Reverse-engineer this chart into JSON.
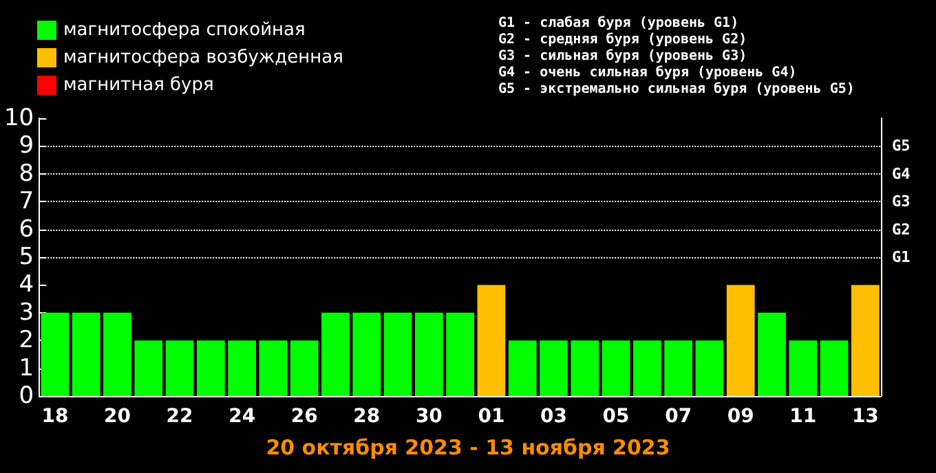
{
  "chart_data": {
    "type": "bar",
    "title": "20 октября 2023 - 13 ноября 2023",
    "categories": [
      "18",
      null,
      "20",
      null,
      "22",
      null,
      "24",
      null,
      "26",
      null,
      "28",
      null,
      "30",
      null,
      "01",
      null,
      "03",
      null,
      "05",
      null,
      "07",
      null,
      "09",
      null,
      "11",
      null,
      "13"
    ],
    "stacked": true,
    "series": [
      {
        "name": "магнитосфера спокойная",
        "color": "#00ff00",
        "values": [
          3,
          3,
          3,
          2,
          2,
          2,
          2,
          2,
          2,
          3,
          3,
          3,
          3,
          3,
          null,
          2,
          2,
          2,
          2,
          2,
          2,
          2,
          null,
          3,
          2,
          2,
          null
        ]
      },
      {
        "name": "магнитосфера возбужденная",
        "color": "#ffbf00",
        "values": [
          null,
          null,
          null,
          null,
          null,
          null,
          null,
          null,
          null,
          null,
          null,
          null,
          null,
          null,
          4,
          null,
          null,
          null,
          null,
          null,
          null,
          null,
          4,
          null,
          null,
          null,
          4
        ]
      },
      {
        "name": "магнитная буря",
        "color": "#ff0000",
        "values": [
          null,
          null,
          null,
          null,
          null,
          null,
          null,
          null,
          null,
          null,
          null,
          null,
          null,
          null,
          null,
          null,
          null,
          null,
          null,
          null,
          null,
          null,
          null,
          null,
          null,
          null,
          null
        ]
      }
    ],
    "ylim": [
      0,
      10
    ],
    "yticks": [
      0,
      1,
      2,
      3,
      4,
      5,
      6,
      7,
      8,
      9,
      10
    ],
    "ref_lines": [
      {
        "axis": "y",
        "value": 5,
        "label": "G1",
        "line_style": "dotted"
      },
      {
        "axis": "y",
        "value": 6,
        "label": "G2",
        "line_style": "dotted"
      },
      {
        "axis": "y",
        "value": 7,
        "label": "G3",
        "line_style": "dotted"
      },
      {
        "axis": "y",
        "value": 8,
        "label": "G4",
        "line_style": "dotted"
      },
      {
        "axis": "y",
        "value": 9,
        "label": "G5",
        "line_style": "dotted"
      }
    ],
    "legend": "top left",
    "annotations": [
      "G1 - слабая буря (уровень G1)",
      "G2 - средняя буря (уровень G2)",
      "G3 - сильная буря (уровень G3)",
      "G4 - очень сильная буря (уровень G4)",
      "G5 - экстремально сильная буря (уровень G5)"
    ]
  }
}
